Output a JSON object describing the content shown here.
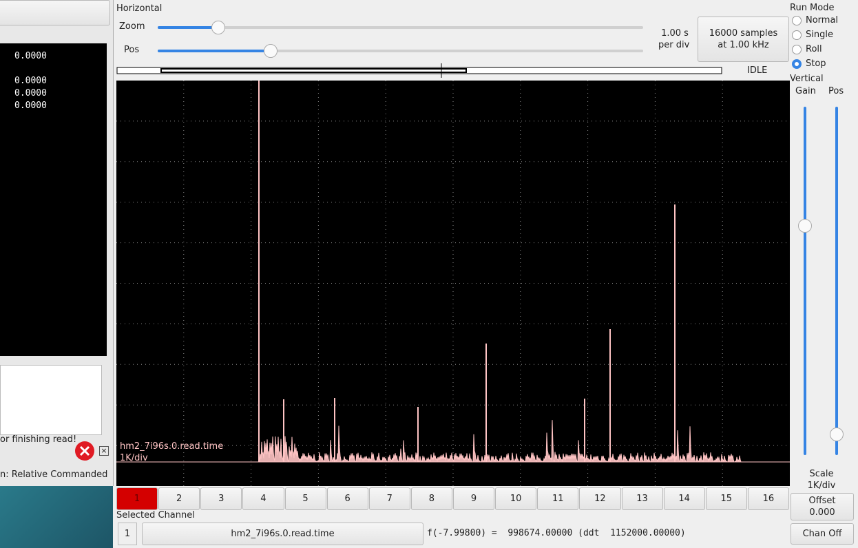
{
  "left_panel": {
    "values": [
      "0.0000",
      "0.0000",
      "0.0000",
      "0.0000"
    ],
    "messages": [
      "or finishing read!",
      "n: Relative Commanded"
    ]
  },
  "horizontal": {
    "title": "Horizontal",
    "zoom_label": "Zoom",
    "pos_label": "Pos",
    "rate": [
      "1.00 s",
      "per div"
    ],
    "samples_button": [
      "16000 samples",
      "at 1.00 kHz"
    ],
    "state": "IDLE"
  },
  "run_mode": {
    "title": "Run Mode",
    "options": [
      "Normal",
      "Single",
      "Roll",
      "Stop"
    ],
    "selected": 3
  },
  "vertical": {
    "title": "Vertical",
    "gain_label": "Gain",
    "pos_label": "Pos",
    "scale_label": "Scale",
    "scale_value": "1K/div",
    "offset_label": "Offset",
    "offset_value": "0.000",
    "chan_off": "Chan Off"
  },
  "display": {
    "channel_name": "hm2_7i96s.0.read.time",
    "scale": "1K/div"
  },
  "channels": [
    "1",
    "2",
    "3",
    "4",
    "5",
    "6",
    "7",
    "8",
    "9",
    "10",
    "11",
    "12",
    "13",
    "14",
    "15",
    "16"
  ],
  "active_channel": 0,
  "selected": {
    "title": "Selected Channel",
    "number": "1",
    "name": "hm2_7i96s.0.read.time",
    "readout": "f(-7.99800) =  998674.00000 (ddt  1152000.00000)"
  }
}
